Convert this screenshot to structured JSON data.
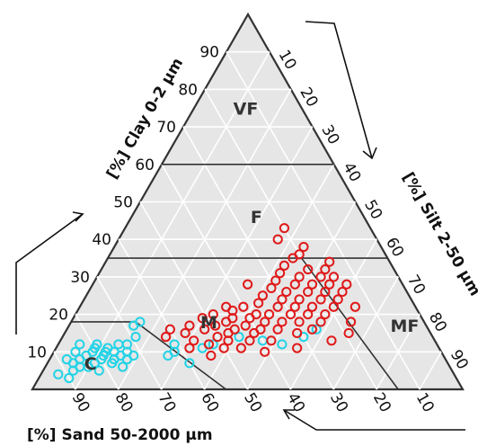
{
  "chart_data": {
    "type": "scatter",
    "subtype": "ternary",
    "grid": true,
    "axes": {
      "clay": {
        "label": "[%] Clay 0-2 μm",
        "ticks": [
          "10",
          "20",
          "30",
          "40",
          "50",
          "60",
          "70",
          "80",
          "90"
        ]
      },
      "silt": {
        "label": "[%] Silt 2-50 μm",
        "ticks": [
          "10",
          "20",
          "30",
          "40",
          "50",
          "60",
          "70",
          "80",
          "90"
        ]
      },
      "sand": {
        "label": "[%] Sand 50-2000 μm",
        "ticks": [
          "90",
          "80",
          "70",
          "60",
          "50",
          "40",
          "30",
          "20",
          "10"
        ]
      }
    },
    "regions": [
      "VF",
      "F",
      "M",
      "MF",
      "C"
    ],
    "series": [
      {
        "color": "#22d3e6",
        "points": [
          {
            "sand": 92,
            "clay": 4
          },
          {
            "sand": 90,
            "clay": 3
          },
          {
            "sand": 88,
            "clay": 5
          },
          {
            "sand": 87,
            "clay": 7
          },
          {
            "sand": 86,
            "clay": 6
          },
          {
            "sand": 85,
            "clay": 8
          },
          {
            "sand": 84,
            "clay": 6
          },
          {
            "sand": 83,
            "clay": 9
          },
          {
            "sand": 82,
            "clay": 7
          },
          {
            "sand": 81,
            "clay": 10
          },
          {
            "sand": 80,
            "clay": 8
          },
          {
            "sand": 80,
            "clay": 11
          },
          {
            "sand": 79,
            "clay": 9
          },
          {
            "sand": 78,
            "clay": 10
          },
          {
            "sand": 78,
            "clay": 7
          },
          {
            "sand": 77,
            "clay": 8
          },
          {
            "sand": 77,
            "clay": 11
          },
          {
            "sand": 76,
            "clay": 10
          },
          {
            "sand": 76,
            "clay": 6
          },
          {
            "sand": 75,
            "clay": 9
          },
          {
            "sand": 74,
            "clay": 12
          },
          {
            "sand": 74,
            "clay": 8
          },
          {
            "sand": 73,
            "clay": 10
          },
          {
            "sand": 72,
            "clay": 9
          },
          {
            "sand": 72,
            "clay": 12
          },
          {
            "sand": 85,
            "clay": 10
          },
          {
            "sand": 83,
            "clay": 12
          },
          {
            "sand": 88,
            "clay": 8
          },
          {
            "sand": 82,
            "clay": 5
          },
          {
            "sand": 79,
            "clay": 12
          },
          {
            "sand": 69,
            "clay": 14
          },
          {
            "sand": 68,
            "clay": 17
          },
          {
            "sand": 66,
            "clay": 18
          },
          {
            "sand": 64,
            "clay": 9
          },
          {
            "sand": 62,
            "clay": 10
          },
          {
            "sand": 61,
            "clay": 12
          },
          {
            "sand": 60,
            "clay": 7
          },
          {
            "sand": 55,
            "clay": 11
          },
          {
            "sand": 52,
            "clay": 12
          },
          {
            "sand": 45,
            "clay": 14
          },
          {
            "sand": 40,
            "clay": 13
          },
          {
            "sand": 36,
            "clay": 12
          },
          {
            "sand": 30,
            "clay": 14
          },
          {
            "sand": 26,
            "clay": 16
          }
        ]
      },
      {
        "color": "#e01919",
        "points": [
          {
            "sand": 62,
            "clay": 14
          },
          {
            "sand": 60,
            "clay": 16
          },
          {
            "sand": 58,
            "clay": 11
          },
          {
            "sand": 57,
            "clay": 15
          },
          {
            "sand": 56,
            "clay": 13
          },
          {
            "sand": 55,
            "clay": 17
          },
          {
            "sand": 54,
            "clay": 9
          },
          {
            "sand": 53,
            "clay": 12
          },
          {
            "sand": 52,
            "clay": 16
          },
          {
            "sand": 51,
            "clay": 19
          },
          {
            "sand": 50,
            "clay": 14
          },
          {
            "sand": 50,
            "clay": 11
          },
          {
            "sand": 49,
            "clay": 17
          },
          {
            "sand": 48,
            "clay": 13
          },
          {
            "sand": 48,
            "clay": 20
          },
          {
            "sand": 47,
            "clay": 15
          },
          {
            "sand": 46,
            "clay": 18
          },
          {
            "sand": 46,
            "clay": 11
          },
          {
            "sand": 45,
            "clay": 16
          },
          {
            "sand": 44,
            "clay": 19
          },
          {
            "sand": 43,
            "clay": 13
          },
          {
            "sand": 43,
            "clay": 21
          },
          {
            "sand": 42,
            "clay": 17
          },
          {
            "sand": 41,
            "clay": 15
          },
          {
            "sand": 40,
            "clay": 19
          },
          {
            "sand": 40,
            "clay": 22
          },
          {
            "sand": 39,
            "clay": 16
          },
          {
            "sand": 38,
            "clay": 20
          },
          {
            "sand": 38,
            "clay": 13
          },
          {
            "sand": 37,
            "clay": 18
          },
          {
            "sand": 36,
            "clay": 23
          },
          {
            "sand": 35,
            "clay": 16
          },
          {
            "sand": 35,
            "clay": 20
          },
          {
            "sand": 34,
            "clay": 25
          },
          {
            "sand": 33,
            "clay": 18
          },
          {
            "sand": 32,
            "clay": 22
          },
          {
            "sand": 31,
            "clay": 27
          },
          {
            "sand": 31,
            "clay": 15
          },
          {
            "sand": 30,
            "clay": 20
          },
          {
            "sand": 30,
            "clay": 24
          },
          {
            "sand": 29,
            "clay": 29
          },
          {
            "sand": 29,
            "clay": 18
          },
          {
            "sand": 28,
            "clay": 22
          },
          {
            "sand": 28,
            "clay": 26
          },
          {
            "sand": 27,
            "clay": 31
          },
          {
            "sand": 27,
            "clay": 16
          },
          {
            "sand": 26,
            "clay": 20
          },
          {
            "sand": 26,
            "clay": 24
          },
          {
            "sand": 25,
            "clay": 28
          },
          {
            "sand": 25,
            "clay": 33
          },
          {
            "sand": 24,
            "clay": 18
          },
          {
            "sand": 24,
            "clay": 22
          },
          {
            "sand": 23,
            "clay": 26
          },
          {
            "sand": 23,
            "clay": 30
          },
          {
            "sand": 22,
            "clay": 35
          },
          {
            "sand": 22,
            "clay": 20
          },
          {
            "sand": 21,
            "clay": 24
          },
          {
            "sand": 21,
            "clay": 28
          },
          {
            "sand": 20,
            "clay": 32
          },
          {
            "sand": 20,
            "clay": 36
          },
          {
            "sand": 19,
            "clay": 22
          },
          {
            "sand": 19,
            "clay": 26
          },
          {
            "sand": 18,
            "clay": 30
          },
          {
            "sand": 18,
            "clay": 38
          },
          {
            "sand": 17,
            "clay": 24
          },
          {
            "sand": 17,
            "clay": 28
          },
          {
            "sand": 16,
            "clay": 32
          },
          {
            "sand": 15,
            "clay": 26
          },
          {
            "sand": 15,
            "clay": 30
          },
          {
            "sand": 14,
            "clay": 34
          },
          {
            "sand": 14,
            "clay": 22
          },
          {
            "sand": 13,
            "clay": 28
          },
          {
            "sand": 19,
            "clay": 15
          },
          {
            "sand": 17,
            "clay": 18
          },
          {
            "sand": 24,
            "clay": 13
          },
          {
            "sand": 33,
            "clay": 11
          },
          {
            "sand": 41,
            "clay": 10
          },
          {
            "sand": 44,
            "clay": 22
          },
          {
            "sand": 36,
            "clay": 28
          },
          {
            "sand": 23,
            "clay": 40
          },
          {
            "sand": 20,
            "clay": 43
          }
        ]
      }
    ]
  }
}
